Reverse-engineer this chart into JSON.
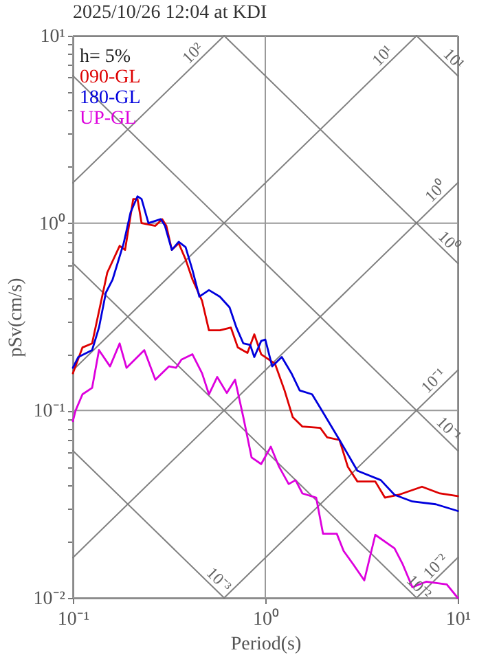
{
  "chart_data": {
    "type": "line",
    "title": "2025/10/26 12:04 at KDI",
    "xlabel": "Period(s)",
    "ylabel": "pSv(cm/s)",
    "log": "xy",
    "grid": true,
    "legend": "top left",
    "xlim": [
      0.1,
      10
    ],
    "ylim": [
      0.01,
      10
    ],
    "xticks": [
      {
        "value": 0.1,
        "label": "10⁻¹"
      },
      {
        "value": 1,
        "label": "10⁰"
      },
      {
        "value": 10,
        "label": "10¹"
      }
    ],
    "yticks": [
      {
        "value": 0.01,
        "label": "10⁻²"
      },
      {
        "value": 0.02,
        "label": null
      },
      {
        "value": 0.03,
        "label": null
      },
      {
        "value": 0.04,
        "label": null
      },
      {
        "value": 0.05,
        "label": null
      },
      {
        "value": 0.06,
        "label": null
      },
      {
        "value": 0.07,
        "label": null
      },
      {
        "value": 0.08,
        "label": null
      },
      {
        "value": 0.09,
        "label": null
      },
      {
        "value": 0.1,
        "label": "10⁻¹"
      },
      {
        "value": 0.2,
        "label": null
      },
      {
        "value": 0.3,
        "label": null
      },
      {
        "value": 0.4,
        "label": null
      },
      {
        "value": 0.5,
        "label": null
      },
      {
        "value": 0.6,
        "label": null
      },
      {
        "value": 0.7,
        "label": null
      },
      {
        "value": 0.8,
        "label": null
      },
      {
        "value": 0.9,
        "label": null
      },
      {
        "value": 1,
        "label": "10⁰"
      },
      {
        "value": 2,
        "label": null
      },
      {
        "value": 3,
        "label": null
      },
      {
        "value": 4,
        "label": null
      },
      {
        "value": 5,
        "label": null
      },
      {
        "value": 6,
        "label": null
      },
      {
        "value": 7,
        "label": null
      },
      {
        "value": 8,
        "label": null
      },
      {
        "value": 9,
        "label": null
      },
      {
        "value": 10,
        "label": "10¹"
      }
    ],
    "annotations": [
      "h= 5%",
      {
        "text": "10²",
        "x": 0.454,
        "y": 7.45
      },
      {
        "text": "10¹",
        "x": 4.4,
        "y": 7.22
      },
      {
        "text": "10⁰",
        "x": 8.3,
        "y": 1.36
      },
      {
        "text": "10⁻¹",
        "x": 8.1,
        "y": 0.133
      },
      {
        "text": "10⁻²",
        "x": 8.3,
        "y": 0.0136
      },
      {
        "text": "10¹",
        "x": 8.8,
        "y": 6.94
      },
      {
        "text": "10⁰",
        "x": 8.3,
        "y": 0.736
      },
      {
        "text": "10⁻¹",
        "x": 8.3,
        "y": 0.0736
      },
      {
        "text": "10⁻²",
        "x": 5.8,
        "y": 0.01053
      },
      {
        "text": "10⁻³",
        "x": 0.53,
        "y": 0.01153
      }
    ],
    "series": [
      {
        "type": "line",
        "color": "#808080",
        "x": [
          0.1,
          0.611
        ],
        "values": [
          1.64,
          10
        ]
      },
      {
        "type": "line",
        "color": "#808080",
        "x": [
          0.1,
          6.11
        ],
        "values": [
          0.164,
          10
        ]
      },
      {
        "type": "line",
        "color": "#808080",
        "x": [
          0.1,
          10
        ],
        "values": [
          0.0164,
          1.64
        ]
      },
      {
        "type": "line",
        "color": "#808080",
        "x": [
          0.611,
          10
        ],
        "values": [
          0.01,
          0.164
        ]
      },
      {
        "type": "line",
        "color": "#808080",
        "x": [
          6.11,
          10
        ],
        "values": [
          0.01,
          0.0164
        ]
      },
      {
        "type": "line",
        "color": "#808080",
        "x": [
          6.11,
          10
        ],
        "values": [
          10,
          6.11
        ]
      },
      {
        "type": "line",
        "color": "#808080",
        "x": [
          0.611,
          10
        ],
        "values": [
          10,
          0.611
        ]
      },
      {
        "type": "line",
        "color": "#808080",
        "x": [
          0.1,
          10
        ],
        "values": [
          6.11,
          0.0611
        ]
      },
      {
        "type": "line",
        "color": "#808080",
        "x": [
          0.1,
          6.11
        ],
        "values": [
          0.611,
          0.01
        ]
      },
      {
        "type": "line",
        "color": "#808080",
        "x": [
          0.1,
          0.611
        ],
        "values": [
          0.0611,
          0.01
        ]
      },
      {
        "name": "090-GL",
        "color": "#dd0000",
        "x": [
          0.1,
          0.1122,
          0.1259,
          0.1509,
          0.175,
          0.1868,
          0.206,
          0.2167,
          0.2276,
          0.2683,
          0.2912,
          0.306,
          0.3268,
          0.3548,
          0.3853,
          0.4182,
          0.4692,
          0.5095,
          0.5809,
          0.6628,
          0.7197,
          0.8075,
          0.8767,
          0.9519,
          1.122,
          1.259,
          1.389,
          1.559,
          1.931,
          2.096,
          2.43,
          2.683,
          3.01,
          3.728,
          4.182,
          4.931,
          6.52,
          8.075,
          10
        ],
        "values": [
          0.158,
          0.217,
          0.228,
          0.544,
          0.756,
          0.72,
          1.345,
          1.345,
          1.0,
          0.968,
          1.05,
          0.968,
          0.72,
          0.781,
          0.641,
          0.501,
          0.385,
          0.268,
          0.268,
          0.277,
          0.217,
          0.203,
          0.255,
          0.1995,
          0.178,
          0.128,
          0.0921,
          0.0821,
          0.0807,
          0.0719,
          0.0696,
          0.0501,
          0.0418,
          0.0418,
          0.0343,
          0.0355,
          0.0392,
          0.0361,
          0.0349
        ]
      },
      {
        "name": "180-GL",
        "color": "#0000dd",
        "x": [
          0.1,
          0.1068,
          0.1259,
          0.1367,
          0.1484,
          0.161,
          0.1837,
          0.1995,
          0.2167,
          0.2276,
          0.2471,
          0.2865,
          0.301,
          0.3268,
          0.3548,
          0.3853,
          0.4182,
          0.4541,
          0.5095,
          0.5809,
          0.652,
          0.7079,
          0.7689,
          0.8343,
          0.8767,
          0.9519,
          1.0,
          1.086,
          1.218,
          1.367,
          1.509,
          1.75,
          1.931,
          2.43,
          3.01,
          3.981,
          4.692,
          5.81,
          7.689,
          10
        ],
        "values": [
          0.169,
          0.193,
          0.21,
          0.277,
          0.425,
          0.501,
          0.781,
          1.141,
          1.389,
          1.345,
          1.0,
          1.05,
          0.968,
          0.72,
          0.794,
          0.744,
          0.562,
          0.405,
          0.439,
          0.405,
          0.355,
          0.277,
          0.228,
          0.224,
          0.193,
          0.235,
          0.239,
          0.172,
          0.193,
          0.158,
          0.128,
          0.122,
          0.1033,
          0.0696,
          0.0477,
          0.0425,
          0.0355,
          0.0327,
          0.0316,
          0.0291
        ]
      },
      {
        "name": "UP-GL",
        "color": "#dd00dd",
        "x": [
          0.1,
          0.1033,
          0.1122,
          0.1259,
          0.1367,
          0.156,
          0.175,
          0.19,
          0.235,
          0.2683,
          0.3162,
          0.3434,
          0.3667,
          0.4182,
          0.4692,
          0.5095,
          0.5623,
          0.631,
          0.6965,
          0.7689,
          0.8483,
          0.9519,
          1.068,
          1.179,
          1.323,
          1.436,
          1.559,
          1.838,
          1.995,
          2.352,
          2.553,
          2.865,
          3.268,
          3.728,
          4.692,
          5.179,
          5.81,
          6.85,
          8.77,
          10
        ],
        "values": [
          0.0877,
          0.1,
          0.122,
          0.132,
          0.21,
          0.172,
          0.228,
          0.169,
          0.21,
          0.146,
          0.172,
          0.169,
          0.187,
          0.1995,
          0.158,
          0.122,
          0.151,
          0.124,
          0.146,
          0.0921,
          0.0562,
          0.0518,
          0.0641,
          0.0501,
          0.0405,
          0.0425,
          0.0361,
          0.0343,
          0.022,
          0.022,
          0.0178,
          0.0151,
          0.0124,
          0.0217,
          0.0184,
          0.0151,
          0.0114,
          0.0122,
          0.0118,
          0.01
        ]
      }
    ]
  }
}
